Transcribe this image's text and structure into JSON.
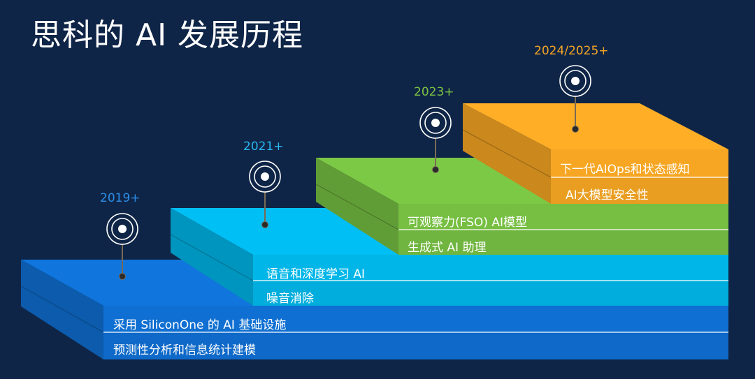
{
  "title": "思科的 AI 发展历程",
  "colors": {
    "background": "#0f2547",
    "step1": "#0f6fd2",
    "step2": "#00b6e8",
    "step3": "#76bf42",
    "step4": "#f6a623",
    "year1": "#2b8ee8",
    "year2": "#2ab7f0",
    "year3": "#7cc242",
    "year4": "#f6a623"
  },
  "steps": [
    {
      "year": "2019+",
      "items": [
        "采用 SiliconOne 的 AI 基础设施",
        "预测性分析和信息统计建模"
      ]
    },
    {
      "year": "2021+",
      "items": [
        "语音和深度学习 AI",
        "噪音消除"
      ]
    },
    {
      "year": "2023+",
      "items": [
        "可观察力(FSO) AI模型",
        "生成式 AI 助理"
      ]
    },
    {
      "year": "2024/2025+",
      "items": [
        "下一代AIOps和状态感知",
        "AI大模型安全性"
      ]
    }
  ]
}
